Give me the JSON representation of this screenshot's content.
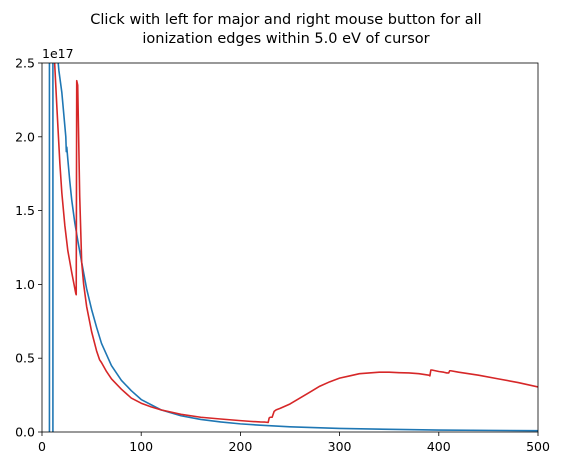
{
  "chart_data": {
    "type": "line",
    "title_lines": [
      "Click with left for major and right mouse button for all",
      "ionization edges within 5.0 eV of cursor"
    ],
    "xlabel": "",
    "ylabel": "",
    "xlim": [
      0,
      500
    ],
    "ylim": [
      0,
      2.5
    ],
    "y_offset_label": "1e17",
    "x_ticks": [
      0,
      100,
      200,
      300,
      400,
      500
    ],
    "x_tick_labels": [
      "0",
      "100",
      "200",
      "300",
      "400",
      "500"
    ],
    "y_ticks": [
      0,
      0.5,
      1.0,
      1.5,
      2.0,
      2.5
    ],
    "y_tick_labels": [
      "0.0",
      "0.5",
      "1.0",
      "1.5",
      "2.0",
      "2.5"
    ],
    "grid": false,
    "series": [
      {
        "color": "#1f77b4",
        "x": [
          7.5,
          7.5,
          7.5,
          15,
          17,
          20,
          24,
          24.5,
          25,
          26,
          28,
          30,
          33,
          36,
          40,
          45,
          50,
          55,
          60,
          70,
          80,
          90,
          100,
          120,
          140,
          160,
          180,
          200,
          220,
          250,
          300,
          350,
          400,
          450,
          500
        ],
        "y": [
          0,
          2.6,
          2.6,
          2.6,
          2.45,
          2.3,
          2.0,
          1.9,
          1.93,
          1.85,
          1.7,
          1.57,
          1.42,
          1.3,
          1.15,
          0.97,
          0.83,
          0.71,
          0.6,
          0.45,
          0.35,
          0.28,
          0.22,
          0.15,
          0.11,
          0.085,
          0.068,
          0.055,
          0.046,
          0.035,
          0.024,
          0.018,
          0.013,
          0.011,
          0.009
        ]
      },
      {
        "color": "#1f77b4",
        "x": [
          11,
          11
        ],
        "y": [
          0,
          2.6
        ]
      },
      {
        "color": "#d62728",
        "x": [
          10,
          12,
          15,
          18,
          20,
          23,
          26,
          30,
          34,
          34.5,
          35,
          36,
          38,
          40,
          42,
          45,
          50,
          55,
          58,
          60,
          65,
          70,
          80,
          90,
          100,
          110,
          120,
          140,
          160,
          180,
          200,
          210,
          220,
          225,
          228,
          229,
          230,
          232,
          234,
          236,
          240,
          250,
          260,
          270,
          280,
          290,
          300,
          310,
          320,
          330,
          340,
          350,
          360,
          370,
          380,
          390,
          391,
          392,
          393,
          400,
          405,
          408,
          410,
          411,
          412,
          420,
          440,
          460,
          480,
          500
        ],
        "y": [
          2.6,
          2.6,
          2.2,
          1.82,
          1.62,
          1.4,
          1.23,
          1.08,
          0.94,
          0.93,
          2.38,
          2.35,
          1.6,
          1.15,
          1.0,
          0.85,
          0.68,
          0.55,
          0.49,
          0.47,
          0.41,
          0.36,
          0.29,
          0.23,
          0.195,
          0.17,
          0.15,
          0.12,
          0.1,
          0.088,
          0.077,
          0.072,
          0.068,
          0.067,
          0.065,
          0.095,
          0.1,
          0.1,
          0.14,
          0.15,
          0.16,
          0.19,
          0.23,
          0.27,
          0.31,
          0.34,
          0.365,
          0.38,
          0.395,
          0.4,
          0.405,
          0.405,
          0.402,
          0.4,
          0.395,
          0.385,
          0.38,
          0.42,
          0.42,
          0.41,
          0.405,
          0.4,
          0.4,
          0.415,
          0.415,
          0.405,
          0.385,
          0.36,
          0.335,
          0.305
        ]
      }
    ]
  }
}
